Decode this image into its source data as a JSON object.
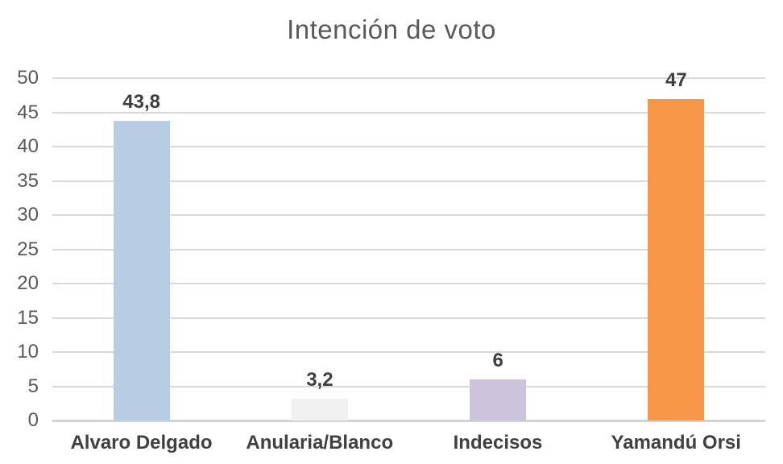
{
  "chart_data": {
    "type": "bar",
    "title": "Intención de voto",
    "categories": [
      "Alvaro Delgado",
      "Anularia/Blanco",
      "Indecisos",
      "Yamandú Orsi"
    ],
    "values": [
      43.8,
      3.2,
      6,
      47
    ],
    "value_labels": [
      "43,8",
      "3,2",
      "6",
      "47"
    ],
    "bar_colors": [
      "#b8cce4",
      "#f1f1f1",
      "#ccc3dd",
      "#f79646"
    ],
    "xlabel": "",
    "ylabel": "",
    "ylim": [
      0,
      50
    ],
    "yticks": [
      0,
      5,
      10,
      15,
      20,
      25,
      30,
      35,
      40,
      45,
      50
    ],
    "grid": true,
    "legend": false,
    "colors": {
      "title": "#595959",
      "tick_label": "#595959",
      "category_label": "#404040",
      "value_label": "#3f3f3f",
      "gridline": "#d9d9d9",
      "baseline": "#d3d3d3",
      "background": "#ffffff"
    }
  }
}
